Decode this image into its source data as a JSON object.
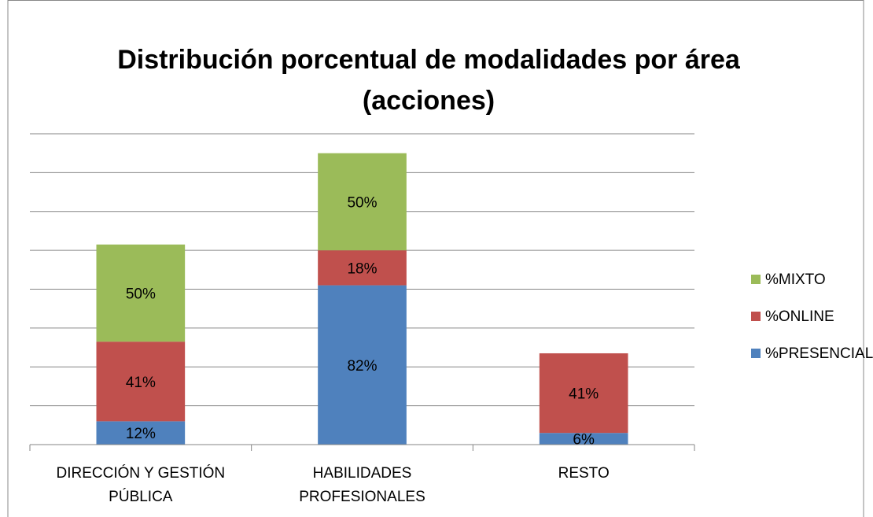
{
  "chart_data": {
    "type": "stacked_bar",
    "title": [
      "Distribución porcentual de modalidades por área",
      "(acciones)"
    ],
    "categories": [
      [
        "DIRECCIÓN Y GESTIÓN",
        "PÚBLICA"
      ],
      [
        "HABILIDADES",
        "PROFESIONALES"
      ],
      [
        "RESTO"
      ]
    ],
    "series": [
      {
        "name": "%PRESENCIAL",
        "color": "#4f81bd",
        "values": [
          12,
          82,
          6
        ],
        "value_labels": [
          "12%",
          "82%",
          "6%"
        ]
      },
      {
        "name": "%ONLINE",
        "color": "#c0504d",
        "values": [
          41,
          18,
          41
        ],
        "value_labels": [
          "41%",
          "18%",
          "41%"
        ]
      },
      {
        "name": "%MIXTO",
        "color": "#9bbb59",
        "values": [
          50,
          50,
          null
        ],
        "value_labels": [
          "50%",
          "50%",
          null
        ]
      }
    ],
    "ylim": [
      0,
      160
    ],
    "yticks": [
      0,
      20,
      40,
      60,
      80,
      100,
      120,
      140,
      160
    ],
    "grid": true,
    "legend": "right"
  }
}
